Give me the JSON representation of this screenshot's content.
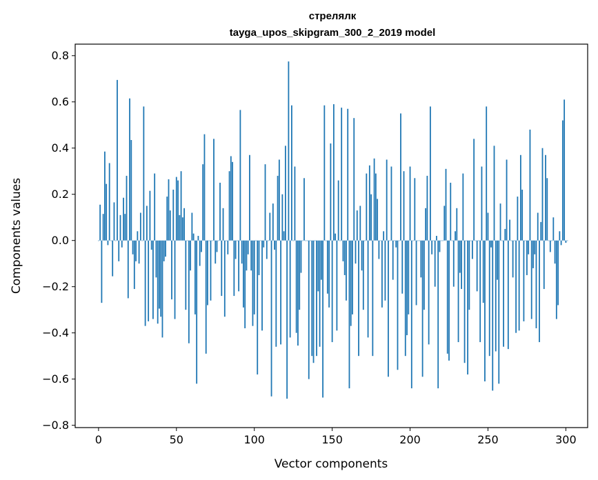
{
  "chart_data": {
    "type": "bar",
    "title": "стрелялк",
    "subtitle": "tayga_upos_skipgram_300_2_2019 model",
    "xlabel": "Vector components",
    "ylabel": "Components values",
    "xlim": [
      -15,
      314
    ],
    "ylim": [
      -0.81,
      0.85
    ],
    "xticks": [
      0,
      50,
      100,
      150,
      200,
      250,
      300
    ],
    "yticks": [
      -0.8,
      -0.6,
      -0.4,
      -0.2,
      0.0,
      0.2,
      0.4,
      0.6,
      0.8
    ],
    "ytick_labels": [
      "−0.8",
      "−0.6",
      "−0.4",
      "−0.2",
      "0.0",
      "0.2",
      "0.4",
      "0.6",
      "0.8"
    ],
    "xtick_labels": [
      "0",
      "50",
      "100",
      "150",
      "200",
      "250",
      "300"
    ],
    "bar_color": "#1f77b4",
    "values": [
      0.0,
      0.155,
      -0.27,
      0.115,
      0.385,
      0.245,
      -0.02,
      0.335,
      0.0,
      -0.155,
      0.165,
      0.0,
      0.695,
      -0.09,
      0.11,
      -0.03,
      0.185,
      0.115,
      0.28,
      -0.25,
      0.615,
      0.435,
      -0.06,
      -0.21,
      -0.09,
      0.04,
      -0.1,
      0.12,
      0.0,
      0.58,
      -0.37,
      0.15,
      -0.35,
      0.215,
      -0.04,
      -0.34,
      0.29,
      -0.16,
      -0.36,
      -0.295,
      -0.33,
      -0.42,
      -0.09,
      -0.07,
      0.19,
      0.265,
      0.13,
      -0.255,
      0.22,
      -0.34,
      0.275,
      0.26,
      0.11,
      0.3,
      0.1,
      0.14,
      -0.3,
      0.0,
      -0.445,
      -0.13,
      0.12,
      0.03,
      -0.32,
      -0.62,
      0.02,
      -0.11,
      -0.05,
      0.33,
      0.46,
      -0.49,
      -0.28,
      0.0,
      -0.26,
      0.0,
      0.44,
      -0.1,
      -0.05,
      0.0,
      0.25,
      -0.24,
      0.14,
      -0.33,
      0.0,
      -0.06,
      0.3,
      0.365,
      0.34,
      -0.24,
      -0.08,
      0.0,
      -0.22,
      0.565,
      -0.1,
      -0.29,
      -0.38,
      -0.13,
      -0.06,
      0.37,
      -0.13,
      -0.37,
      -0.32,
      0.0,
      -0.58,
      -0.15,
      0.0,
      -0.39,
      -0.03,
      0.33,
      -0.08,
      0.0,
      0.12,
      -0.675,
      0.16,
      -0.04,
      -0.46,
      0.28,
      0.35,
      -0.45,
      0.2,
      0.04,
      0.41,
      -0.685,
      0.775,
      -0.42,
      0.585,
      0.0,
      0.32,
      -0.4,
      -0.455,
      -0.3,
      -0.14,
      0.0,
      0.27,
      0.0,
      0.0,
      -0.6,
      0.0,
      -0.5,
      -0.53,
      0.0,
      -0.5,
      -0.22,
      -0.46,
      -0.17,
      -0.68,
      0.585,
      0.0,
      -0.23,
      -0.29,
      0.42,
      -0.44,
      0.59,
      0.03,
      -0.39,
      0.26,
      0.0,
      0.575,
      -0.09,
      -0.15,
      -0.26,
      0.57,
      -0.64,
      -0.37,
      -0.32,
      0.53,
      -0.1,
      0.13,
      -0.5,
      0.15,
      -0.13,
      -0.3,
      0.0,
      0.29,
      -0.42,
      0.325,
      0.2,
      -0.5,
      0.355,
      0.29,
      0.18,
      -0.08,
      0.0,
      -0.29,
      0.04,
      -0.26,
      0.35,
      -0.59,
      0.0,
      0.32,
      -0.17,
      0.0,
      -0.03,
      -0.56,
      0.0,
      0.55,
      -0.23,
      0.3,
      -0.5,
      -0.41,
      -0.32,
      0.32,
      -0.64,
      0.0,
      0.27,
      -0.28,
      0.0,
      0.0,
      -0.16,
      -0.59,
      -0.3,
      0.14,
      0.28,
      -0.45,
      0.58,
      -0.06,
      0.0,
      -0.2,
      0.02,
      -0.64,
      -0.05,
      0.0,
      0.0,
      0.15,
      0.31,
      -0.49,
      -0.52,
      0.25,
      0.0,
      -0.2,
      0.04,
      0.14,
      -0.44,
      -0.14,
      -0.21,
      0.29,
      -0.53,
      0.0,
      -0.58,
      -0.3,
      0.0,
      -0.08,
      0.44,
      0.0,
      -0.22,
      0.0,
      -0.44,
      0.32,
      -0.27,
      -0.61,
      0.58,
      0.12,
      -0.5,
      -0.03,
      -0.65,
      0.41,
      -0.48,
      -0.17,
      -0.62,
      0.16,
      0.0,
      -0.46,
      0.05,
      0.35,
      -0.47,
      0.09,
      0.0,
      -0.16,
      0.0,
      -0.4,
      0.19,
      -0.39,
      0.37,
      0.22,
      -0.35,
      0.0,
      -0.15,
      -0.06,
      0.48,
      -0.34,
      -0.12,
      -0.06,
      -0.38,
      0.12,
      -0.44,
      0.08,
      0.4,
      -0.21,
      0.37,
      0.27,
      0.0,
      -0.05,
      0.0,
      0.1,
      -0.1,
      -0.34,
      -0.28,
      0.04,
      -0.02,
      0.52,
      0.61,
      -0.01,
      0.0
    ]
  }
}
